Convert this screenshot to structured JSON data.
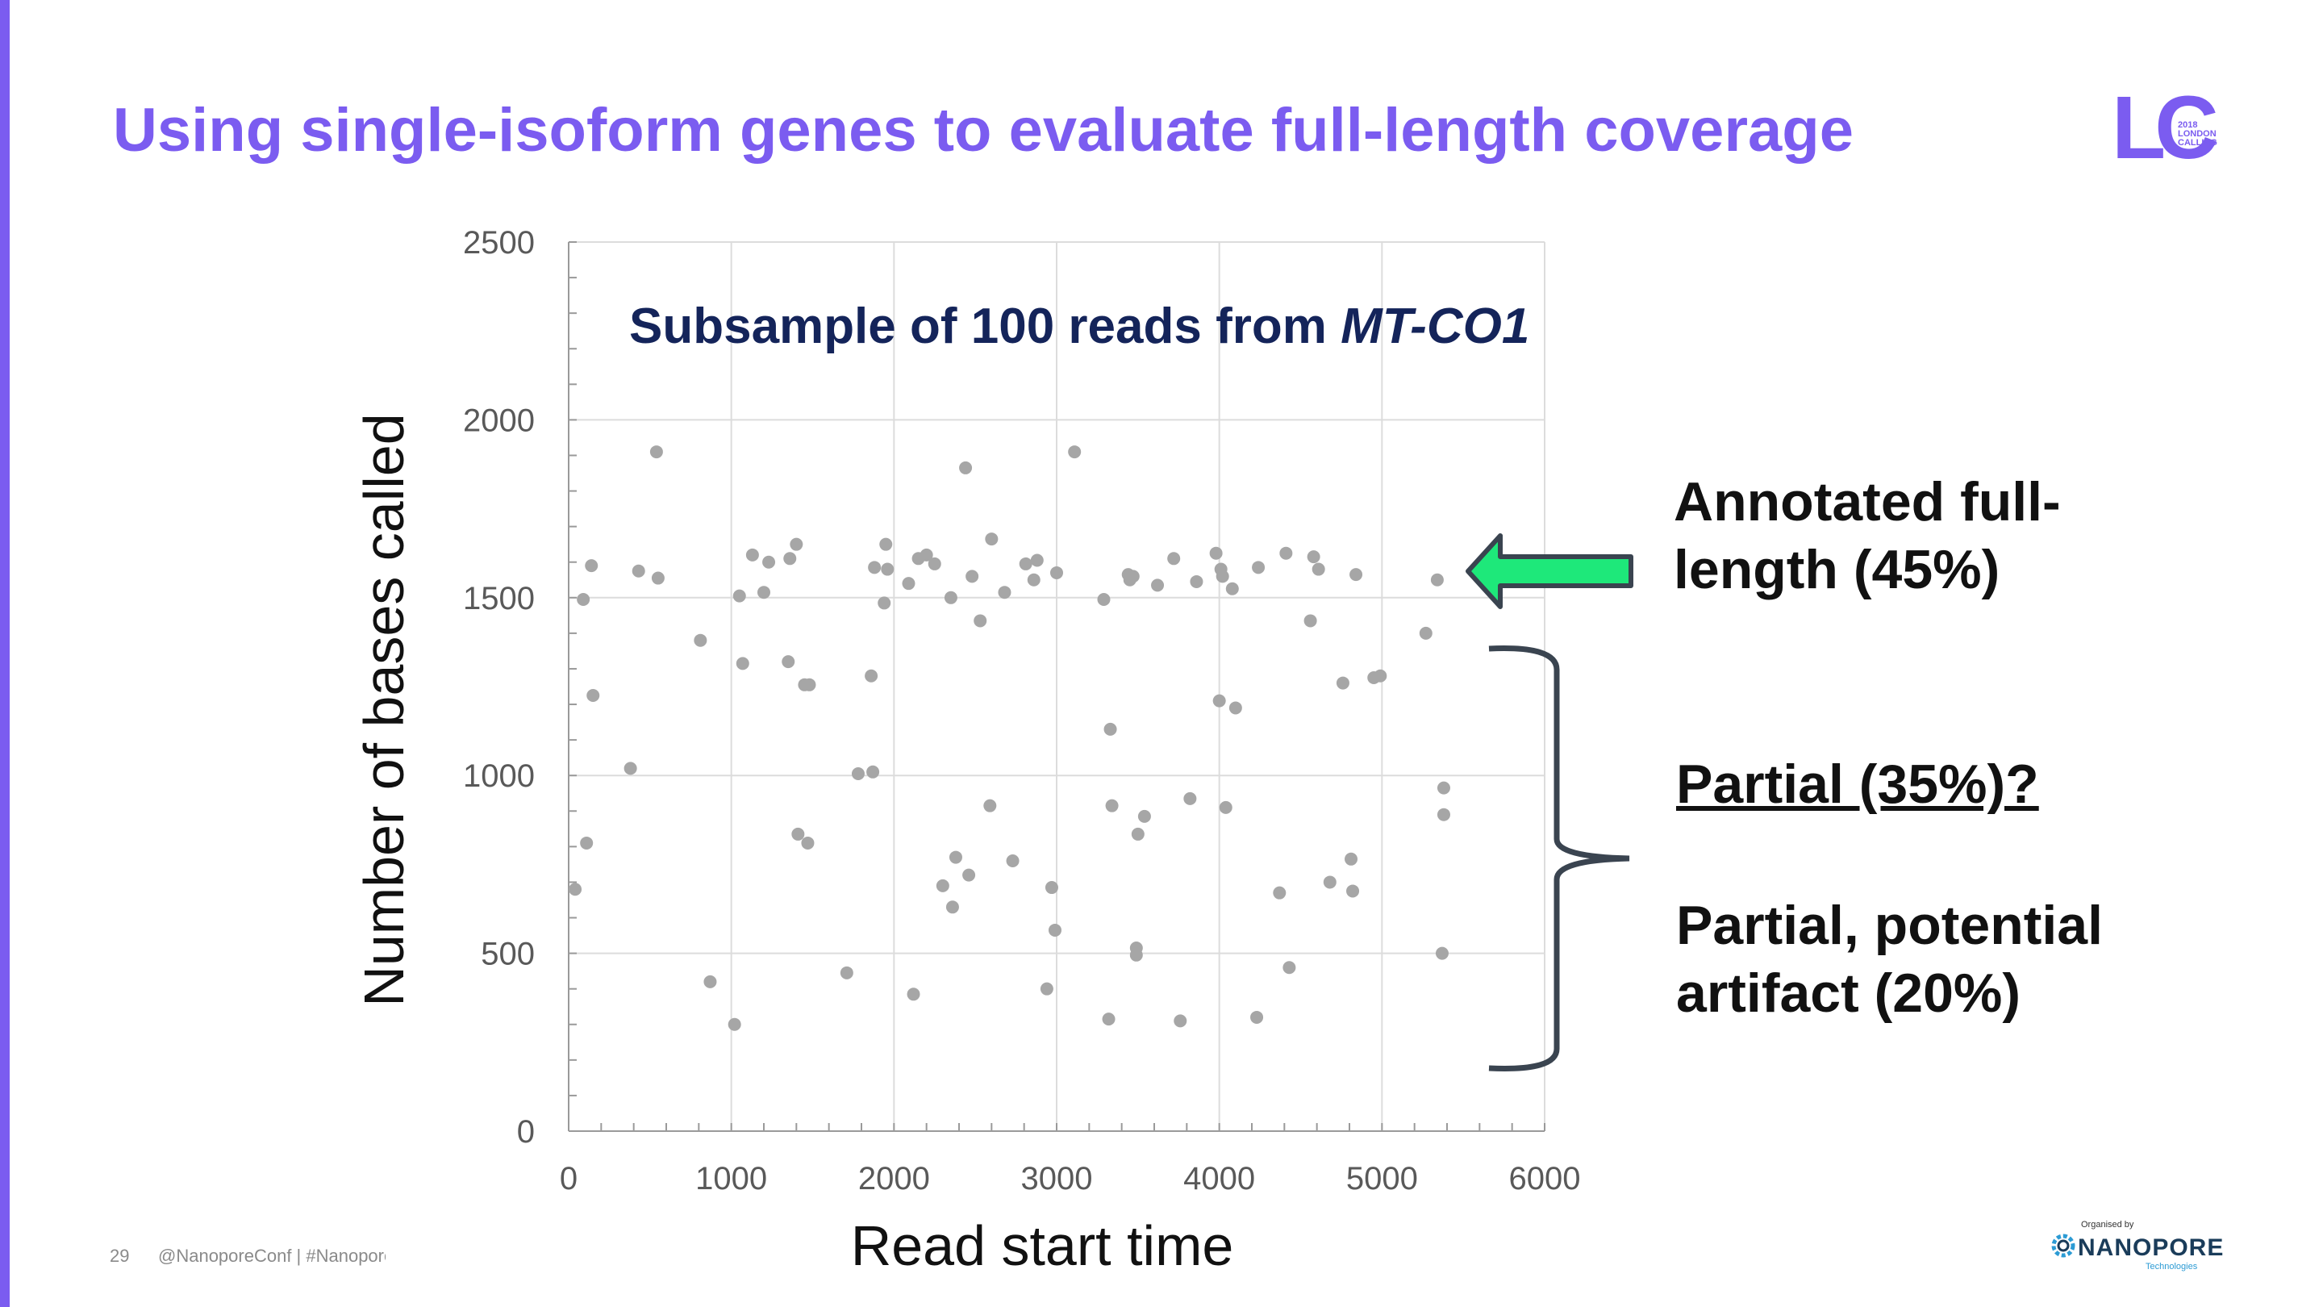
{
  "slide": {
    "title": "Using single-isoform genes to evaluate full-length coverage",
    "page_number": "29",
    "footer_text": "@NanoporeConf | #NanoporeConf",
    "accent_color": "#7b5cf0"
  },
  "logos": {
    "lc": {
      "letters": "LC",
      "year": "2018",
      "line1": "LONDON",
      "line2": "CALLING"
    },
    "nanopore": {
      "organised_by": "Organised by",
      "name": "NANOPORE",
      "tagline": "Technologies"
    }
  },
  "callouts": {
    "full_length": "Annotated full-length (45%)",
    "partial": "Partial (35%)?",
    "artifact": "Partial, potential artifact (20%)"
  },
  "chart_data": {
    "type": "scatter",
    "title_text": "Subsample of 100 reads from ",
    "title_italic": "MT-CO1",
    "xlabel": "Read start time",
    "ylabel": "Number of bases called",
    "xlim": [
      0,
      6000
    ],
    "ylim": [
      0,
      2500
    ],
    "x_ticks": [
      0,
      1000,
      2000,
      3000,
      4000,
      5000,
      6000
    ],
    "y_ticks": [
      0,
      500,
      1000,
      1500,
      2000,
      2500
    ],
    "grid": true,
    "point_color": "#a6a6a6",
    "arrow_color": "#1ee87a",
    "points": [
      [
        40,
        680
      ],
      [
        90,
        1495
      ],
      [
        110,
        810
      ],
      [
        140,
        1590
      ],
      [
        150,
        1225
      ],
      [
        380,
        1020
      ],
      [
        430,
        1575
      ],
      [
        540,
        1910
      ],
      [
        550,
        1555
      ],
      [
        810,
        1380
      ],
      [
        870,
        420
      ],
      [
        1020,
        300
      ],
      [
        1050,
        1505
      ],
      [
        1070,
        1315
      ],
      [
        1130,
        1620
      ],
      [
        1200,
        1515
      ],
      [
        1230,
        1600
      ],
      [
        1350,
        1320
      ],
      [
        1360,
        1610
      ],
      [
        1400,
        1650
      ],
      [
        1410,
        835
      ],
      [
        1450,
        1255
      ],
      [
        1470,
        810
      ],
      [
        1480,
        1255
      ],
      [
        1710,
        445
      ],
      [
        1780,
        1005
      ],
      [
        1860,
        1280
      ],
      [
        1870,
        1010
      ],
      [
        1880,
        1585
      ],
      [
        1940,
        1485
      ],
      [
        1950,
        1650
      ],
      [
        1960,
        1580
      ],
      [
        2090,
        1540
      ],
      [
        2120,
        385
      ],
      [
        2150,
        1610
      ],
      [
        2200,
        1620
      ],
      [
        2250,
        1595
      ],
      [
        2300,
        690
      ],
      [
        2350,
        1500
      ],
      [
        2360,
        630
      ],
      [
        2380,
        770
      ],
      [
        2440,
        1865
      ],
      [
        2460,
        720
      ],
      [
        2480,
        1560
      ],
      [
        2530,
        1435
      ],
      [
        2590,
        915
      ],
      [
        2600,
        1665
      ],
      [
        2680,
        1515
      ],
      [
        2730,
        760
      ],
      [
        2810,
        1595
      ],
      [
        2860,
        1550
      ],
      [
        2880,
        1605
      ],
      [
        2940,
        400
      ],
      [
        2970,
        685
      ],
      [
        2990,
        565
      ],
      [
        3000,
        1570
      ],
      [
        3110,
        1910
      ],
      [
        3290,
        1495
      ],
      [
        3320,
        315
      ],
      [
        3330,
        1130
      ],
      [
        3340,
        915
      ],
      [
        3440,
        1565
      ],
      [
        3450,
        1550
      ],
      [
        3470,
        1560
      ],
      [
        3490,
        515
      ],
      [
        3490,
        495
      ],
      [
        3500,
        835
      ],
      [
        3540,
        885
      ],
      [
        3620,
        1535
      ],
      [
        3720,
        1610
      ],
      [
        3760,
        310
      ],
      [
        3820,
        935
      ],
      [
        3860,
        1545
      ],
      [
        3980,
        1625
      ],
      [
        4000,
        1210
      ],
      [
        4010,
        1580
      ],
      [
        4020,
        1560
      ],
      [
        4040,
        910
      ],
      [
        4080,
        1525
      ],
      [
        4100,
        1190
      ],
      [
        4230,
        320
      ],
      [
        4240,
        1585
      ],
      [
        4370,
        670
      ],
      [
        4410,
        1625
      ],
      [
        4430,
        460
      ],
      [
        4560,
        1435
      ],
      [
        4580,
        1615
      ],
      [
        4610,
        1580
      ],
      [
        4680,
        700
      ],
      [
        4760,
        1260
      ],
      [
        4810,
        765
      ],
      [
        4820,
        675
      ],
      [
        4840,
        1565
      ],
      [
        4950,
        1275
      ],
      [
        4990,
        1280
      ],
      [
        5270,
        1400
      ],
      [
        5340,
        1550
      ],
      [
        5370,
        500
      ],
      [
        5380,
        965
      ],
      [
        5380,
        890
      ]
    ]
  }
}
